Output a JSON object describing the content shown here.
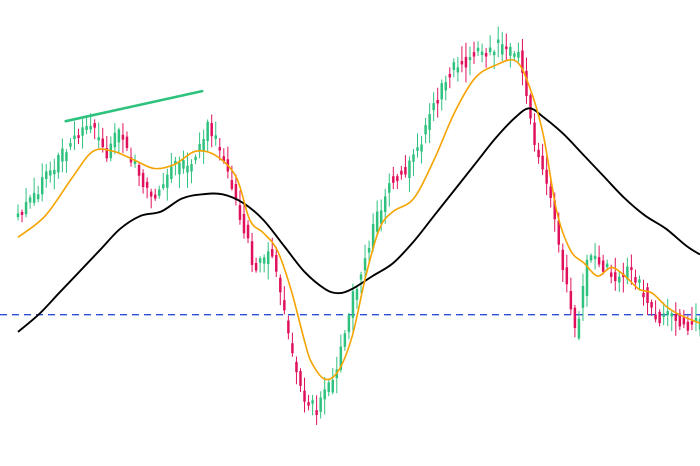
{
  "chart_data": {
    "type": "candlestick",
    "title": "",
    "xlabel": "",
    "ylabel": "",
    "axes_visible": false,
    "grid": false,
    "legend": "none",
    "x_range": [
      0,
      100
    ],
    "y_range": [
      0,
      100
    ],
    "colors": {
      "up": "#2ec27e",
      "down": "#e0105c",
      "fast_ma": "#f5a300",
      "slow_ma": "#000000",
      "reference": "#2e4fd6",
      "trendline": "#2ec27e",
      "background": "#ffffff"
    },
    "ohlc_anchors": [
      [
        0,
        53
      ],
      [
        4,
        62
      ],
      [
        8,
        71
      ],
      [
        11,
        75
      ],
      [
        13,
        68
      ],
      [
        15,
        73
      ],
      [
        18,
        64
      ],
      [
        20,
        58
      ],
      [
        23,
        65
      ],
      [
        26,
        66
      ],
      [
        28,
        75
      ],
      [
        30,
        69
      ],
      [
        32,
        58
      ],
      [
        35,
        42
      ],
      [
        37,
        45
      ],
      [
        38,
        42
      ],
      [
        40,
        25
      ],
      [
        42,
        11
      ],
      [
        44,
        9
      ],
      [
        47,
        17
      ],
      [
        49,
        33
      ],
      [
        52,
        49
      ],
      [
        55,
        63
      ],
      [
        57,
        64
      ],
      [
        59,
        70
      ],
      [
        62,
        83
      ],
      [
        64,
        88
      ],
      [
        67,
        91
      ],
      [
        70,
        93
      ],
      [
        74,
        91
      ],
      [
        76,
        71
      ],
      [
        78,
        60
      ],
      [
        80,
        44
      ],
      [
        82,
        26
      ],
      [
        84,
        45
      ],
      [
        86,
        42
      ],
      [
        88,
        39
      ],
      [
        90,
        41
      ],
      [
        92,
        36
      ],
      [
        94,
        30
      ],
      [
        96,
        31
      ],
      [
        98,
        28
      ],
      [
        100,
        29
      ]
    ],
    "fast_ma": {
      "x": [
        0,
        4,
        8,
        11,
        14,
        17,
        20,
        23,
        26,
        29,
        32,
        34,
        36,
        38,
        40,
        42,
        43,
        45,
        47,
        49,
        51,
        53,
        55,
        58,
        61,
        64,
        67,
        70,
        73,
        75,
        77,
        79,
        81,
        83,
        85,
        87,
        89,
        91,
        93,
        95,
        97,
        100
      ],
      "y": [
        49,
        54,
        63,
        69,
        69,
        67,
        65,
        66,
        69,
        68,
        63,
        53,
        50,
        46,
        37,
        25,
        20,
        16,
        18,
        26,
        40,
        51,
        55,
        58,
        67,
        78,
        86,
        89,
        90,
        84,
        73,
        55,
        46,
        43,
        40,
        42,
        40,
        37,
        36,
        33,
        31,
        29
      ]
    },
    "slow_ma": {
      "x": [
        0,
        3,
        6,
        9,
        12,
        15,
        18,
        21,
        24,
        27,
        30,
        33,
        36,
        39,
        42,
        45,
        47,
        49,
        52,
        55,
        58,
        61,
        64,
        67,
        70,
        73,
        75,
        77,
        80,
        83,
        86,
        89,
        92,
        95,
        98,
        100
      ],
      "y": [
        27,
        31,
        36,
        41,
        46,
        51,
        54,
        55,
        58,
        59,
        59,
        57,
        53,
        47,
        41,
        37,
        36,
        37,
        40,
        43,
        48,
        54,
        60,
        66,
        72,
        77,
        79,
        77,
        73,
        68,
        63,
        58,
        54,
        51,
        47,
        45
      ]
    },
    "reference_level": 31,
    "trendline": {
      "x": [
        7,
        27
      ],
      "y": [
        76,
        83
      ]
    }
  }
}
